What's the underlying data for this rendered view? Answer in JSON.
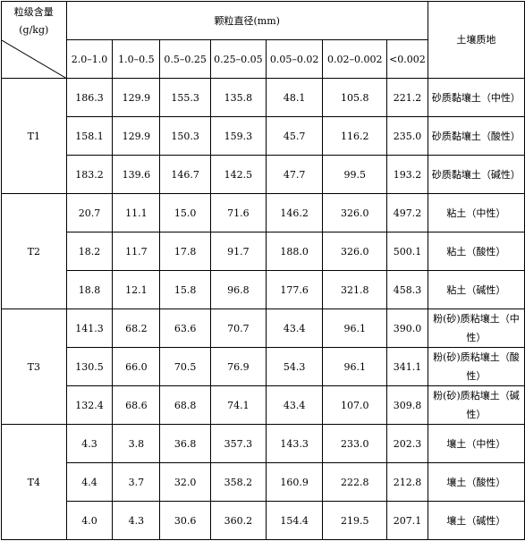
{
  "table": {
    "corner_line1": "粒级含量",
    "corner_line2": "(g/kg)",
    "diameter_header": "颗粒直径(mm)",
    "soil_header": "土壤质地",
    "size_classes": [
      "2.0–1.0",
      "1.0–0.5",
      "0.5–0.25",
      "0.25–0.05",
      "0.05–0.02",
      "0.02–0.002",
      "<0.002"
    ],
    "groups": [
      {
        "label": "T1",
        "rows": [
          {
            "values": [
              "186.3",
              "129.9",
              "155.3",
              "135.8",
              "48.1",
              "105.8",
              "221.2"
            ],
            "soil": "砂质黏壤土（中性）"
          },
          {
            "values": [
              "158.1",
              "129.9",
              "150.3",
              "159.3",
              "45.7",
              "116.2",
              "235.0"
            ],
            "soil": "砂质黏壤土（酸性）"
          },
          {
            "values": [
              "183.2",
              "139.6",
              "146.7",
              "142.5",
              "47.7",
              "99.5",
              "193.2"
            ],
            "soil": "砂质黏壤土（碱性）"
          }
        ]
      },
      {
        "label": "T2",
        "rows": [
          {
            "values": [
              "20.7",
              "11.1",
              "15.0",
              "71.6",
              "146.2",
              "326.0",
              "497.2"
            ],
            "soil": "粘土（中性）"
          },
          {
            "values": [
              "18.2",
              "11.7",
              "17.8",
              "91.7",
              "188.0",
              "326.0",
              "500.1"
            ],
            "soil": "粘土（酸性）"
          },
          {
            "values": [
              "18.8",
              "12.1",
              "15.8",
              "96.8",
              "177.6",
              "321.8",
              "458.3"
            ],
            "soil": "粘土（碱性）"
          }
        ]
      },
      {
        "label": "T3",
        "rows": [
          {
            "values": [
              "141.3",
              "68.2",
              "63.6",
              "70.7",
              "43.4",
              "96.1",
              "390.0"
            ],
            "soil": "粉(砂)质粘壤土（中性）"
          },
          {
            "values": [
              "130.5",
              "66.0",
              "70.5",
              "76.9",
              "54.3",
              "96.1",
              "341.1"
            ],
            "soil": "粉(砂)质粘壤土（酸性）"
          },
          {
            "values": [
              "132.4",
              "68.6",
              "68.8",
              "74.1",
              "43.4",
              "107.0",
              "309.8"
            ],
            "soil": "粉(砂)质粘壤土（碱性）"
          }
        ]
      },
      {
        "label": "T4",
        "rows": [
          {
            "values": [
              "4.3",
              "3.8",
              "36.8",
              "357.3",
              "143.3",
              "233.0",
              "202.3"
            ],
            "soil": "壤土（中性）"
          },
          {
            "values": [
              "4.4",
              "3.7",
              "32.0",
              "358.2",
              "160.9",
              "222.8",
              "212.8"
            ],
            "soil": "壤土（酸性）"
          },
          {
            "values": [
              "4.0",
              "4.3",
              "30.6",
              "360.2",
              "154.4",
              "219.5",
              "207.1"
            ],
            "soil": "壤土（碱性）"
          }
        ]
      }
    ]
  }
}
